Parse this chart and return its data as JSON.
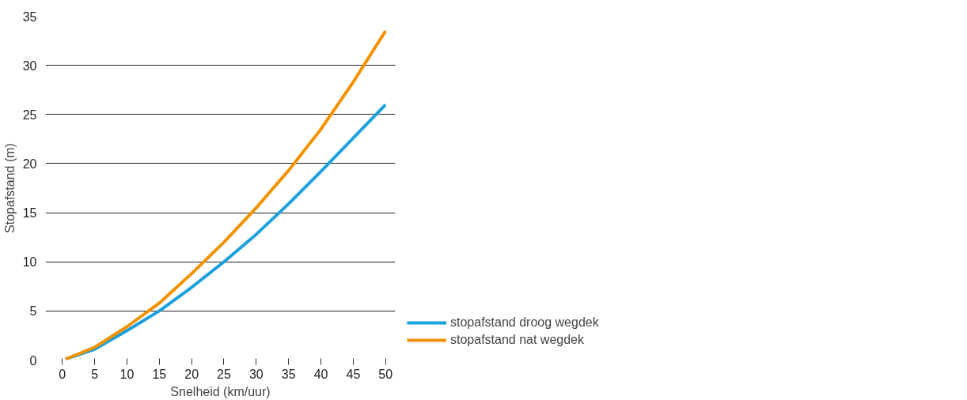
{
  "chart_data": {
    "type": "line",
    "xlabel": "Snelheid (km/uur)",
    "ylabel": "Stopafstand (m)",
    "xlim": [
      -2.6,
      51.5
    ],
    "ylim": [
      0,
      35
    ],
    "xticks": [
      0,
      5,
      10,
      15,
      20,
      25,
      30,
      35,
      40,
      45,
      50
    ],
    "yticks": [
      0,
      5,
      10,
      15,
      20,
      25,
      30,
      35
    ],
    "grid": "y",
    "legend": "bottom right",
    "marker": "none",
    "line_style": "solid",
    "x": [
      0.5,
      5,
      10,
      15,
      20,
      25,
      30,
      35,
      40,
      45,
      50
    ],
    "series": [
      {
        "name": "stopafstand droog wegdek",
        "color": "#1ba1de",
        "values": [
          0.1,
          1.1,
          3,
          5,
          7.4,
          10,
          12.8,
          15.9,
          19.2,
          22.6,
          26
        ]
      },
      {
        "name": "stopafstand nat wegdek",
        "color": "#f39200",
        "values": [
          0.1,
          1.3,
          3.4,
          5.8,
          8.8,
          12,
          15.5,
          19.3,
          23.5,
          28.3,
          33.5
        ]
      }
    ]
  }
}
